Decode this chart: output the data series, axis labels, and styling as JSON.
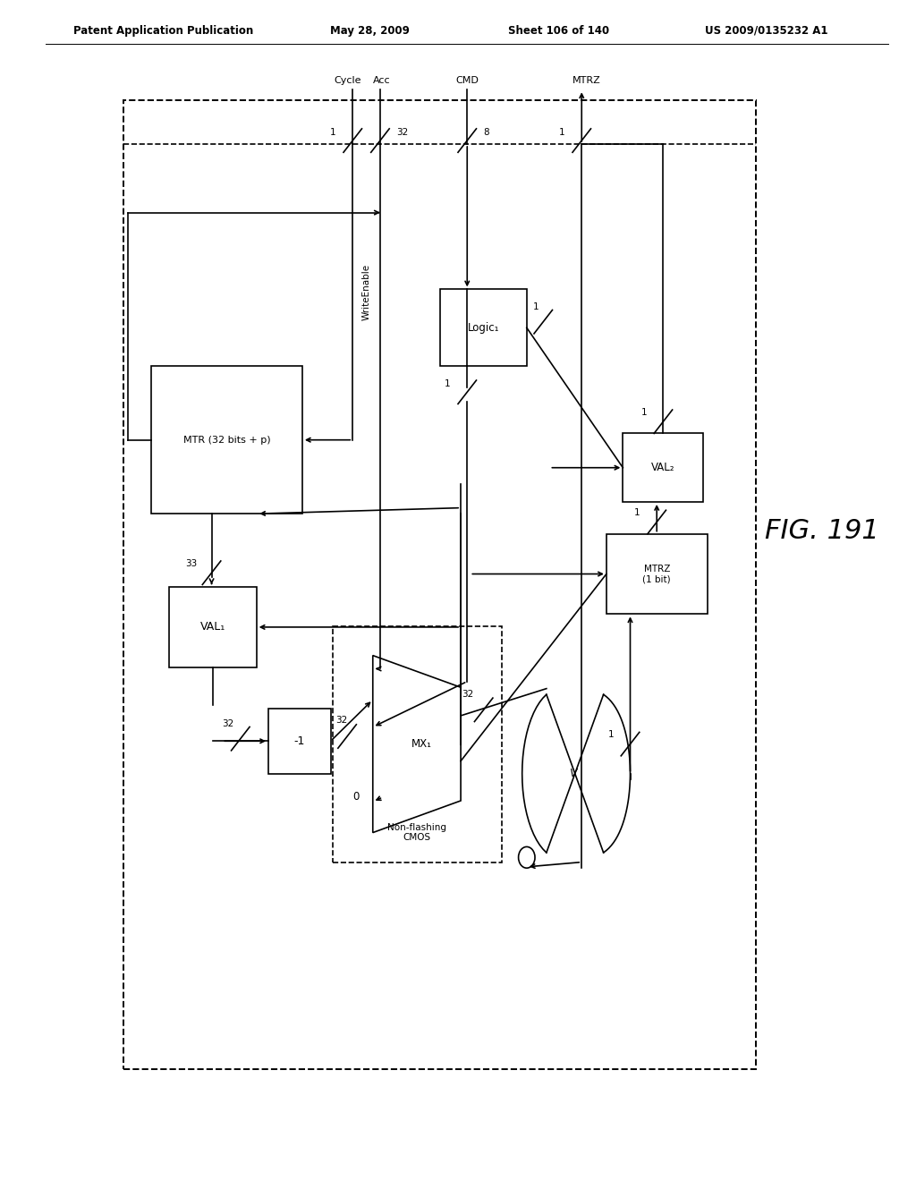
{
  "bg": "#ffffff",
  "lc": "#000000",
  "header_left": "Patent Application Publication",
  "header_date": "May 28, 2009",
  "header_sheet": "Sheet 106 of 140",
  "header_patent": "US 2009/0135232 A1",
  "fig_label": "FIG. 191"
}
